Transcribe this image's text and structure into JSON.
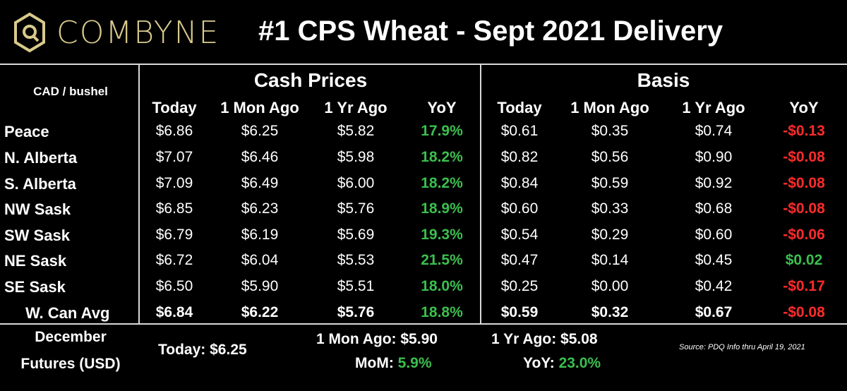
{
  "brand": {
    "name": "COMBYNE",
    "logo_icon": "combyne-hex-logo-icon",
    "logo_color": "#d9ca8c"
  },
  "title": "#1 CPS Wheat - Sept 2021 Delivery",
  "unit_label": "CAD / bushel",
  "groups": {
    "cash": "Cash Prices",
    "basis": "Basis"
  },
  "columns": {
    "cash": [
      "Today",
      "1 Mon Ago",
      "1 Yr Ago",
      "YoY"
    ],
    "basis": [
      "Today",
      "1 Mon Ago",
      "1 Yr Ago",
      "YoY"
    ]
  },
  "rows": [
    {
      "label": "Peace",
      "cash": [
        "$6.86",
        "$6.25",
        "$5.82",
        "17.9%"
      ],
      "basis": [
        "$0.61",
        "$0.35",
        "$0.74",
        "-$0.13"
      ],
      "basis_yoy_sign": "neg"
    },
    {
      "label": "N. Alberta",
      "cash": [
        "$7.07",
        "$6.46",
        "$5.98",
        "18.2%"
      ],
      "basis": [
        "$0.82",
        "$0.56",
        "$0.90",
        "-$0.08"
      ],
      "basis_yoy_sign": "neg"
    },
    {
      "label": "S. Alberta",
      "cash": [
        "$7.09",
        "$6.49",
        "$6.00",
        "18.2%"
      ],
      "basis": [
        "$0.84",
        "$0.59",
        "$0.92",
        "-$0.08"
      ],
      "basis_yoy_sign": "neg"
    },
    {
      "label": "NW Sask",
      "cash": [
        "$6.85",
        "$6.23",
        "$5.76",
        "18.9%"
      ],
      "basis": [
        "$0.60",
        "$0.33",
        "$0.68",
        "-$0.08"
      ],
      "basis_yoy_sign": "neg"
    },
    {
      "label": "SW Sask",
      "cash": [
        "$6.79",
        "$6.19",
        "$5.69",
        "19.3%"
      ],
      "basis": [
        "$0.54",
        "$0.29",
        "$0.60",
        "-$0.06"
      ],
      "basis_yoy_sign": "neg"
    },
    {
      "label": "NE Sask",
      "cash": [
        "$6.72",
        "$6.04",
        "$5.53",
        "21.5%"
      ],
      "basis": [
        "$0.47",
        "$0.14",
        "$0.45",
        "$0.02"
      ],
      "basis_yoy_sign": "pos"
    },
    {
      "label": "SE Sask",
      "cash": [
        "$6.50",
        "$5.90",
        "$5.51",
        "18.0%"
      ],
      "basis": [
        "$0.25",
        "$0.00",
        "$0.42",
        "-$0.17"
      ],
      "basis_yoy_sign": "neg"
    }
  ],
  "avg_row": {
    "label": "W. Can Avg",
    "cash": [
      "$6.84",
      "$6.22",
      "$5.76",
      "18.8%"
    ],
    "basis": [
      "$0.59",
      "$0.32",
      "$0.67",
      "-$0.08"
    ],
    "basis_yoy_sign": "neg"
  },
  "footer": {
    "label_line1": "December",
    "label_line2": "Futures (USD)",
    "today_label": "Today:",
    "today_value": "$6.25",
    "mon_label": "1 Mon Ago:",
    "mon_value": "$5.90",
    "mom_label": "MoM:",
    "mom_value": "5.9%",
    "yr_label": "1 Yr Ago:",
    "yr_value": "$5.08",
    "yoy_label": "YoY:",
    "yoy_value": "23.0%",
    "source": "Source: PDQ Info thru April 19, 2021"
  },
  "colors": {
    "positive": "#3bbf4e",
    "negative": "#ff2b2b",
    "rule": "#d9d9d9",
    "background": "#000000"
  }
}
